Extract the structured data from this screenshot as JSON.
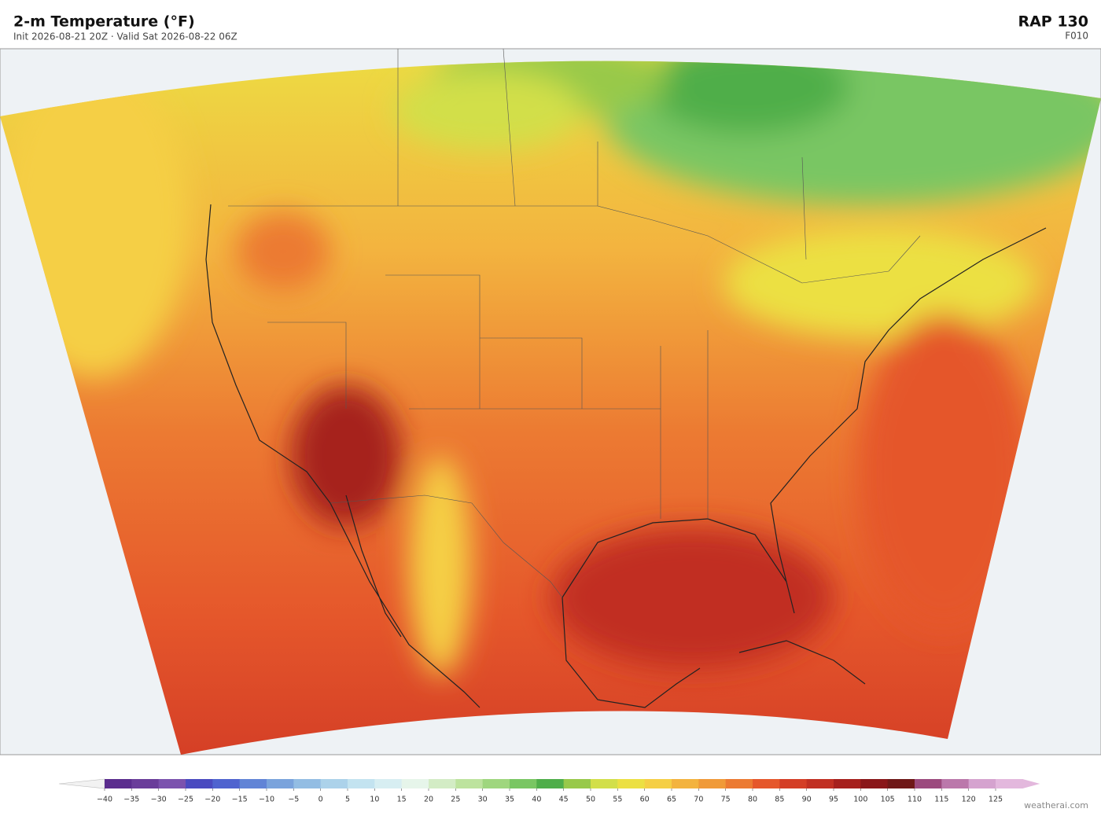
{
  "header": {
    "title": "2-m Temperature  (°F)",
    "subtitle": "Init 2026-08-21 20Z   ·   Valid Sat 2026-08-22 06Z",
    "model": "RAP  130",
    "forecast_hour": "F010"
  },
  "colorbar": {
    "ticks": [
      {
        "value": -40,
        "label": "−40"
      },
      {
        "value": -35,
        "label": "−35"
      },
      {
        "value": -30,
        "label": "−30"
      },
      {
        "value": -25,
        "label": "−25"
      },
      {
        "value": -20,
        "label": "−20"
      },
      {
        "value": -15,
        "label": "−15"
      },
      {
        "value": -10,
        "label": "−10"
      },
      {
        "value": -5,
        "label": "−5"
      },
      0,
      5,
      10,
      15,
      20,
      25,
      30,
      35,
      40,
      45,
      50,
      55,
      60,
      65,
      70,
      75,
      80,
      85,
      90,
      95,
      100,
      105,
      110,
      115,
      120,
      125
    ],
    "colors": [
      "#5b2d8e",
      "#6a3d9a",
      "#7b52ae",
      "#4a4ac0",
      "#4f63cf",
      "#6184d6",
      "#7aa3dc",
      "#93bde3",
      "#acd2ea",
      "#c3e3f0",
      "#d7eef2",
      "#e6f5ea",
      "#d3ecc5",
      "#bde39e",
      "#9fd67e",
      "#79c663",
      "#4fae4a",
      "#98c94a",
      "#d2df4a",
      "#ece043",
      "#f5cf45",
      "#f3b33f",
      "#f09a38",
      "#ec7a32",
      "#e5572b",
      "#d43e26",
      "#c12f22",
      "#a6201d",
      "#8a1619",
      "#6f1818",
      "#9c4a7e",
      "#bb78ab",
      "#d5a3cf",
      "#e3b8dd"
    ]
  },
  "footer": {
    "credit": "weatherai.com"
  }
}
